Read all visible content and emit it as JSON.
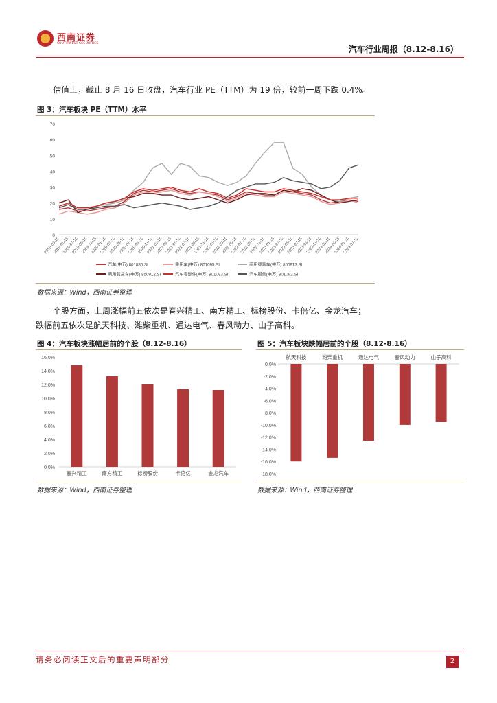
{
  "header": {
    "brand_cn": "西南证券",
    "brand_en": "SOUTHWEST SECURITIES",
    "report_title": "汽车行业周报（8.12-8.16）"
  },
  "intro": "估值上，截止 8 月 16 日收盘，汽车行业 PE（TTM）为 19 倍，较前一周下跌 0.4%。",
  "fig3": {
    "title": "图 3：汽车板块 PE（TTM）水平",
    "source": "数据来源：Wind，西南证券整理"
  },
  "chart_data": [
    {
      "type": "line",
      "title": "",
      "ylim": [
        0,
        70
      ],
      "yticks": [
        "0",
        "10",
        "20",
        "30",
        "40",
        "50",
        "60",
        "70"
      ],
      "x": [
        "2019-03-15",
        "2019-05-15",
        "2019-07-15",
        "2019-09-15",
        "2019-11-15",
        "2020-01-15",
        "2020-03-15",
        "2020-05-15",
        "2020-07-15",
        "2020-09-15",
        "2020-11-15",
        "2021-01-15",
        "2021-03-15",
        "2021-05-15",
        "2021-07-15",
        "2021-09-15",
        "2021-11-15",
        "2022-01-15",
        "2022-03-15",
        "2022-05-15",
        "2022-07-15",
        "2022-09-15",
        "2022-11-15",
        "2023-01-15",
        "2023-03-15",
        "2023-05-15",
        "2023-07-15",
        "2023-09-15",
        "2023-11-15",
        "2024-01-15",
        "2024-03-15",
        "2024-05-15",
        "2024-07-15"
      ],
      "legend_position": "bottom",
      "series": [
        {
          "name": "汽车(申万) 801880.SI",
          "color": "#b03a3a",
          "values": [
            16,
            17,
            15,
            15,
            16,
            17,
            18,
            21,
            26,
            28,
            27,
            28,
            29,
            27,
            26,
            27,
            26,
            25,
            22,
            24,
            27,
            26,
            25,
            25,
            28,
            27,
            26,
            25,
            22,
            20,
            21,
            22,
            21
          ]
        },
        {
          "name": "乘用车(申万) 801095.SI",
          "color": "#e59a9a",
          "values": [
            13,
            15,
            14,
            13,
            14,
            16,
            17,
            20,
            25,
            27,
            26,
            27,
            28,
            26,
            25,
            27,
            26,
            24,
            21,
            23,
            26,
            25,
            24,
            24,
            27,
            26,
            25,
            24,
            21,
            19,
            20,
            22,
            20
          ]
        },
        {
          "name": "商用载客车(申万) 850913.SI",
          "color": "#a9a9a9",
          "values": [
            18,
            20,
            17,
            17,
            18,
            19,
            20,
            22,
            28,
            33,
            42,
            45,
            38,
            45,
            43,
            37,
            36,
            33,
            31,
            33,
            37,
            45,
            52,
            58,
            58,
            42,
            38,
            30,
            25,
            22,
            21,
            23,
            24
          ]
        },
        {
          "name": "商用载货车(申万) 850912.SI",
          "color": "#6b1f1f",
          "values": [
            20,
            22,
            14,
            16,
            18,
            20,
            21,
            23,
            24,
            26,
            26,
            25,
            25,
            23,
            22,
            23,
            24,
            22,
            20,
            22,
            25,
            26,
            26,
            25,
            28,
            27,
            29,
            28,
            25,
            22,
            20,
            21,
            22
          ]
        },
        {
          "name": "汽车零部件(申万) 801093.SI",
          "color": "#c9302c",
          "values": [
            18,
            20,
            17,
            17,
            18,
            20,
            21,
            23,
            27,
            29,
            28,
            29,
            30,
            28,
            27,
            29,
            27,
            26,
            23,
            25,
            29,
            28,
            27,
            27,
            29,
            28,
            27,
            26,
            24,
            22,
            22,
            23,
            23
          ]
        },
        {
          "name": "汽车服务(申万) 801092.SI",
          "color": "#555555",
          "values": [
            17,
            19,
            16,
            16,
            17,
            18,
            18,
            19,
            17,
            18,
            19,
            20,
            19,
            18,
            16,
            17,
            18,
            20,
            24,
            28,
            30,
            32,
            32,
            33,
            36,
            34,
            33,
            32,
            29,
            30,
            34,
            42,
            44
          ]
        }
      ]
    },
    {
      "type": "bar",
      "title": "图 4：汽车板块涨幅居前的个股（8.12-8.16）",
      "categories": [
        "春兴精工",
        "南方精工",
        "标榜股份",
        "卡倍亿",
        "金龙汽车"
      ],
      "values": [
        14.8,
        13.2,
        12.0,
        11.3,
        11.2
      ],
      "unit": "%",
      "ylim": [
        0,
        16
      ],
      "yticks": [
        "0.0%",
        "2.0%",
        "4.0%",
        "6.0%",
        "8.0%",
        "10.0%",
        "12.0%",
        "14.0%",
        "16.0%"
      ],
      "color": "#b03a3a"
    },
    {
      "type": "bar",
      "title": "图 5：汽车板块跌幅居前的个股（8.12-8.16）",
      "categories": [
        "航天科技",
        "潍柴重机",
        "通达电气",
        "春风动力",
        "山子高科"
      ],
      "values": [
        -16.0,
        -15.4,
        -12.6,
        -10.0,
        -9.5
      ],
      "unit": "%",
      "ylim": [
        -18,
        0
      ],
      "yticks": [
        "0.0%",
        "-2.0%",
        "-4.0%",
        "-6.0%",
        "-8.0%",
        "-10.0%",
        "-12.0%",
        "-14.0%",
        "-16.0%",
        "-18.0%"
      ],
      "color": "#b03a3a"
    }
  ],
  "para2": {
    "line1": "个股方面，上周涨幅前五依次是春兴精工、南方精工、标榜股份、卡倍亿、金龙汽车；",
    "line2": "跌幅前五依次是航天科技、潍柴重机、通达电气、春风动力、山子高科。"
  },
  "fig4": {
    "title": "图 4：汽车板块涨幅居前的个股（8.12-8.16）",
    "source": "数据来源：Wind，西南证券整理"
  },
  "fig5": {
    "title": "图 5：汽车板块跌幅居前的个股（8.12-8.16）",
    "source": "数据来源：Wind，西南证券整理"
  },
  "footer": {
    "disclaimer": "请务必阅读正文后的重要声明部分",
    "page": "2"
  }
}
